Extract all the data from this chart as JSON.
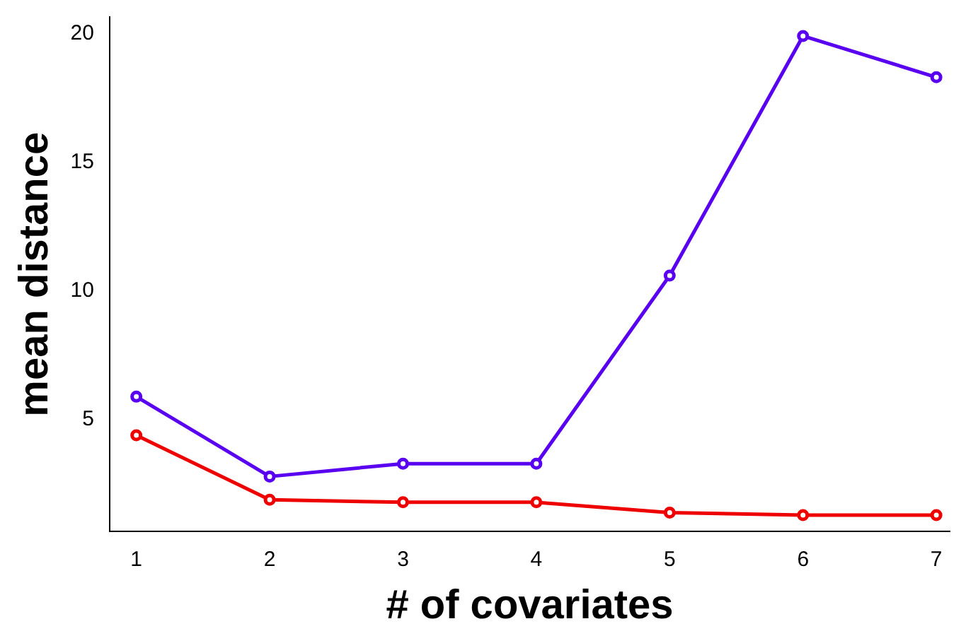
{
  "chart_data": {
    "type": "line",
    "xlabel": "# of covariates",
    "ylabel": "mean distance",
    "x": [
      1,
      2,
      3,
      4,
      5,
      6,
      7
    ],
    "series": [
      {
        "color": "#5a00f0",
        "values": [
          5.9,
          2.8,
          3.3,
          3.3,
          10.6,
          19.9,
          18.3
        ]
      },
      {
        "color": "#ee0000",
        "values": [
          4.4,
          1.9,
          1.8,
          1.8,
          1.4,
          1.3,
          1.3
        ]
      }
    ],
    "xlim": [
      0.8,
      7.1
    ],
    "xticks": [
      1,
      2,
      3,
      4,
      5,
      6,
      7
    ],
    "ylim": [
      0.66,
      20.64
    ],
    "yticks": [
      5,
      10,
      15,
      20
    ],
    "grid": false,
    "legend": false,
    "marker": "circle",
    "line_style": "solid"
  }
}
